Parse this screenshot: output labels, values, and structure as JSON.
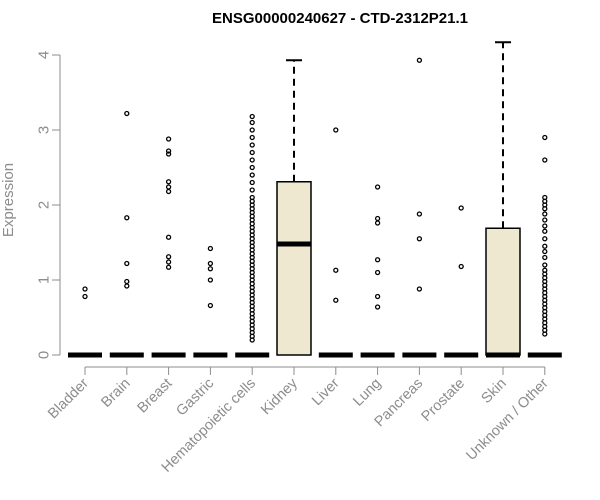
{
  "chart_data": {
    "type": "boxplot",
    "title": "ENSG00000240627 - CTD-2312P21.1",
    "ylabel": "Expression",
    "xlabel": "",
    "ylim": [
      0,
      4.2
    ],
    "yticks": [
      0,
      1,
      2,
      3,
      4
    ],
    "box_fill": "#ede8cf",
    "categories": [
      {
        "name": "Bladder",
        "q1": 0,
        "median": 0,
        "q3": 0,
        "whisker_low": 0,
        "whisker_high": 0,
        "outliers": [
          0.78,
          0.88
        ]
      },
      {
        "name": "Brain",
        "q1": 0,
        "median": 0,
        "q3": 0,
        "whisker_low": 0,
        "whisker_high": 0,
        "outliers": [
          0.92,
          0.98,
          1.22,
          1.83,
          3.22
        ]
      },
      {
        "name": "Breast",
        "q1": 0,
        "median": 0,
        "q3": 0,
        "whisker_low": 0,
        "whisker_high": 0,
        "outliers": [
          1.17,
          1.24,
          1.31,
          1.57,
          2.18,
          2.24,
          2.31,
          2.68,
          2.72,
          2.88
        ]
      },
      {
        "name": "Gastric",
        "q1": 0,
        "median": 0,
        "q3": 0,
        "whisker_low": 0,
        "whisker_high": 0,
        "outliers": [
          0.66,
          1.0,
          1.15,
          1.22,
          1.42
        ]
      },
      {
        "name": "Hematopoietic cells",
        "q1": 0,
        "median": 0,
        "q3": 0,
        "whisker_low": 0,
        "whisker_high": 0,
        "outliers": [
          0.2,
          0.25,
          0.3,
          0.35,
          0.4,
          0.45,
          0.5,
          0.55,
          0.6,
          0.65,
          0.7,
          0.75,
          0.8,
          0.85,
          0.9,
          0.95,
          1.0,
          1.05,
          1.1,
          1.15,
          1.2,
          1.25,
          1.3,
          1.35,
          1.4,
          1.45,
          1.5,
          1.55,
          1.6,
          1.65,
          1.7,
          1.75,
          1.8,
          1.85,
          1.9,
          1.95,
          2.0,
          2.05,
          2.1,
          2.2,
          2.3,
          2.4,
          2.5,
          2.6,
          2.7,
          2.8,
          2.9,
          3.0,
          3.1,
          3.18
        ]
      },
      {
        "name": "Kidney",
        "q1": 0,
        "median": 1.48,
        "q3": 2.31,
        "whisker_low": 0,
        "whisker_high": 3.93,
        "outliers": []
      },
      {
        "name": "Liver",
        "q1": 0,
        "median": 0,
        "q3": 0,
        "whisker_low": 0,
        "whisker_high": 0,
        "outliers": [
          0.73,
          1.13,
          3.0
        ]
      },
      {
        "name": "Lung",
        "q1": 0,
        "median": 0,
        "q3": 0,
        "whisker_low": 0,
        "whisker_high": 0,
        "outliers": [
          0.64,
          0.78,
          1.1,
          1.27,
          1.76,
          1.82,
          2.24
        ]
      },
      {
        "name": "Pancreas",
        "q1": 0,
        "median": 0,
        "q3": 0,
        "whisker_low": 0,
        "whisker_high": 0,
        "outliers": [
          0.88,
          1.55,
          1.88,
          3.93
        ]
      },
      {
        "name": "Prostate",
        "q1": 0,
        "median": 0,
        "q3": 0,
        "whisker_low": 0,
        "whisker_high": 0,
        "outliers": [
          1.18,
          1.96
        ]
      },
      {
        "name": "Skin",
        "q1": 0,
        "median": 0,
        "q3": 1.69,
        "whisker_low": 0,
        "whisker_high": 4.17,
        "outliers": []
      },
      {
        "name": "Unknown / Other",
        "q1": 0,
        "median": 0,
        "q3": 0,
        "whisker_low": 0,
        "whisker_high": 0,
        "outliers": [
          0.28,
          0.33,
          0.38,
          0.43,
          0.48,
          0.53,
          0.58,
          0.63,
          0.68,
          0.73,
          0.78,
          0.83,
          0.88,
          0.93,
          0.98,
          1.03,
          1.08,
          1.13,
          1.2,
          1.3,
          1.38,
          1.45,
          1.55,
          1.65,
          1.72,
          1.8,
          1.88,
          1.95,
          2.0,
          2.05,
          2.1,
          2.6,
          2.9
        ]
      }
    ]
  }
}
